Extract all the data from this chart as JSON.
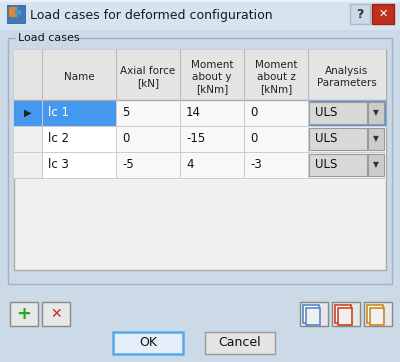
{
  "title": "Load cases for deformed configuration",
  "group_label": "Load cases",
  "col_headers": [
    "Name",
    "Axial force\n[kN]",
    "Moment\nabout y\n[kNm]",
    "Moment\nabout z\n[kNm]",
    "Analysis\nParameters"
  ],
  "rows": [
    [
      "lc 1",
      "5",
      "14",
      "0",
      "ULS"
    ],
    [
      "lc 2",
      "0",
      "-15",
      "0",
      "ULS"
    ],
    [
      "lc 3",
      "-5",
      "4",
      "-3",
      "ULS"
    ]
  ],
  "selected_row": 0,
  "bg_light": "#dce8f0",
  "dialog_bg": "#ccdae8",
  "table_bg": "#f0f0f0",
  "header_bg": "#e0e0e0",
  "selected_bg": "#4499ee",
  "selected_fg": "#ffffff",
  "cell_bg": "#ffffff",
  "uls_bg": "#d8d8d8",
  "border_color": "#888888",
  "ok_border": "#55aaee",
  "figsize": [
    4.0,
    3.62
  ],
  "dpi": 100
}
